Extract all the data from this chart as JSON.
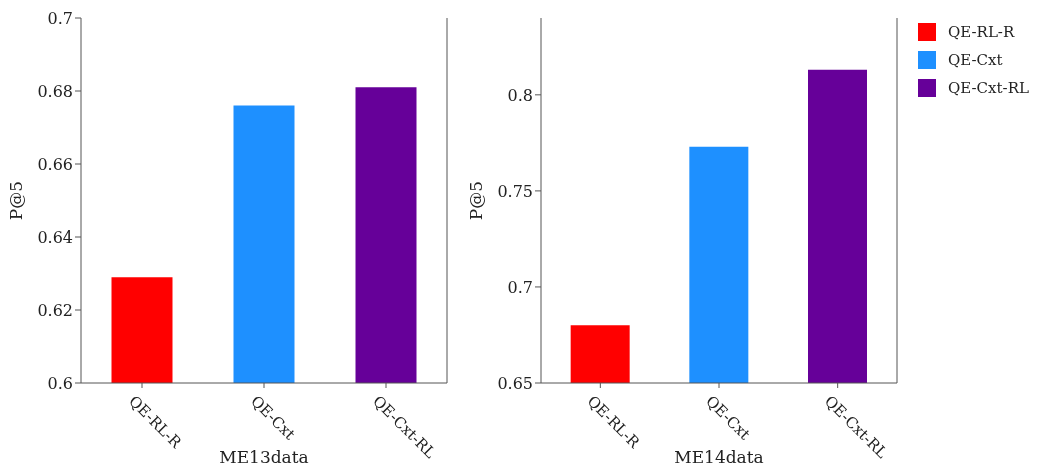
{
  "chart_data": [
    {
      "type": "bar",
      "stacked": true,
      "xlabel": "ME13data",
      "ylabel": "P@5",
      "categories": [
        "QE-RL-R",
        "QE-Cxt",
        "QE-Cxt-RL"
      ],
      "ylim": [
        0.6,
        0.7
      ],
      "yticks": [
        0.6,
        0.62,
        0.64,
        0.66,
        0.68,
        0.7
      ],
      "series": [
        {
          "color": "#ff0000",
          "values": [
            0.629,
            null,
            null
          ]
        },
        {
          "color": "#1e90ff",
          "values": [
            null,
            0.676,
            null
          ]
        },
        {
          "color": "#660099",
          "values": [
            null,
            null,
            0.681
          ]
        }
      ]
    },
    {
      "type": "bar",
      "stacked": true,
      "xlabel": "ME14data",
      "ylabel": "P@5",
      "categories": [
        "QE-RL-R",
        "QE-Cxt",
        "QE-Cxt-RL"
      ],
      "ylim": [
        0.65,
        0.84
      ],
      "yticks": [
        0.65,
        0.7,
        0.75,
        0.8
      ],
      "legend": "right",
      "series": [
        {
          "name": "QE-RL-R",
          "color": "#ff0000",
          "values": [
            0.68,
            null,
            null
          ]
        },
        {
          "name": "QE-Cxt",
          "color": "#1e90ff",
          "values": [
            null,
            0.773,
            null
          ]
        },
        {
          "name": "QE-Cxt-RL",
          "color": "#660099",
          "values": [
            null,
            null,
            0.813
          ]
        }
      ]
    }
  ]
}
